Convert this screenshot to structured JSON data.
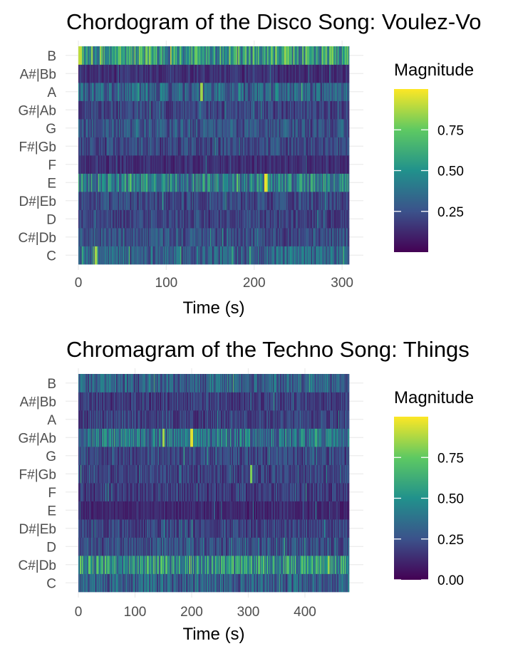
{
  "chart_data": [
    {
      "type": "heatmap",
      "title": "Chordogram of the Disco Song: Voulez-Vo",
      "xlabel": "Time (s)",
      "ylabel": "",
      "categories": [
        "C",
        "C#|Db",
        "D",
        "D#|Eb",
        "E",
        "F",
        "F#|Gb",
        "G",
        "G#|Ab",
        "A",
        "A#|Bb",
        "B"
      ],
      "xlim": [
        0,
        308
      ],
      "xticks": [
        0,
        100,
        200,
        300
      ],
      "clim": [
        0,
        1
      ],
      "grid": true,
      "colormap": [
        "#440154",
        "#3b528b",
        "#21918c",
        "#5ec962",
        "#fde725"
      ],
      "legend": {
        "title": "Magnitude",
        "ticks": [
          0.25,
          0.5,
          0.75
        ],
        "tick_labels": [
          "0.25",
          "0.50",
          "0.75"
        ],
        "placement": "right"
      },
      "row_mean_magnitude": {
        "C": 0.32,
        "C#|Db": 0.24,
        "D": 0.2,
        "D#|Eb": 0.22,
        "E": 0.44,
        "F": 0.14,
        "F#|Gb": 0.22,
        "G": 0.26,
        "G#|Ab": 0.2,
        "A": 0.32,
        "A#|Bb": 0.14,
        "B": 0.55
      },
      "peaks": [
        {
          "pitch": "E",
          "time": 213,
          "magnitude": 0.97
        },
        {
          "pitch": "B",
          "time": 2,
          "magnitude": 0.9
        },
        {
          "pitch": "A",
          "time": 140,
          "magnitude": 0.85
        },
        {
          "pitch": "C",
          "time": 20,
          "magnitude": 0.85
        }
      ]
    },
    {
      "type": "heatmap",
      "title": "Chromagram of the Techno Song: Things",
      "xlabel": "Time (s)",
      "ylabel": "",
      "categories": [
        "C",
        "C#|Db",
        "D",
        "D#|Eb",
        "E",
        "F",
        "F#|Gb",
        "G",
        "G#|Ab",
        "A",
        "A#|Bb",
        "B"
      ],
      "xlim": [
        0,
        478
      ],
      "xticks": [
        0,
        100,
        200,
        300,
        400
      ],
      "clim": [
        0,
        1
      ],
      "grid": true,
      "colormap": [
        "#440154",
        "#3b528b",
        "#21918c",
        "#5ec962",
        "#fde725"
      ],
      "legend": {
        "title": "Magnitude",
        "ticks": [
          0,
          0.25,
          0.5,
          0.75
        ],
        "tick_labels": [
          "0.00",
          "0.25",
          "0.50",
          "0.75"
        ],
        "placement": "right"
      },
      "row_mean_magnitude": {
        "C": 0.3,
        "C#|Db": 0.5,
        "D": 0.24,
        "D#|Eb": 0.2,
        "E": 0.12,
        "F": 0.18,
        "F#|Gb": 0.2,
        "G": 0.22,
        "G#|Ab": 0.38,
        "A": 0.2,
        "A#|Bb": 0.18,
        "B": 0.3
      },
      "peaks": [
        {
          "pitch": "G#|Ab",
          "time": 200,
          "magnitude": 0.95
        },
        {
          "pitch": "G#|Ab",
          "time": 150,
          "magnitude": 0.85
        },
        {
          "pitch": "C#|Db",
          "time": 20,
          "magnitude": 0.75
        },
        {
          "pitch": "F#|Gb",
          "time": 305,
          "magnitude": 0.8
        }
      ]
    }
  ]
}
